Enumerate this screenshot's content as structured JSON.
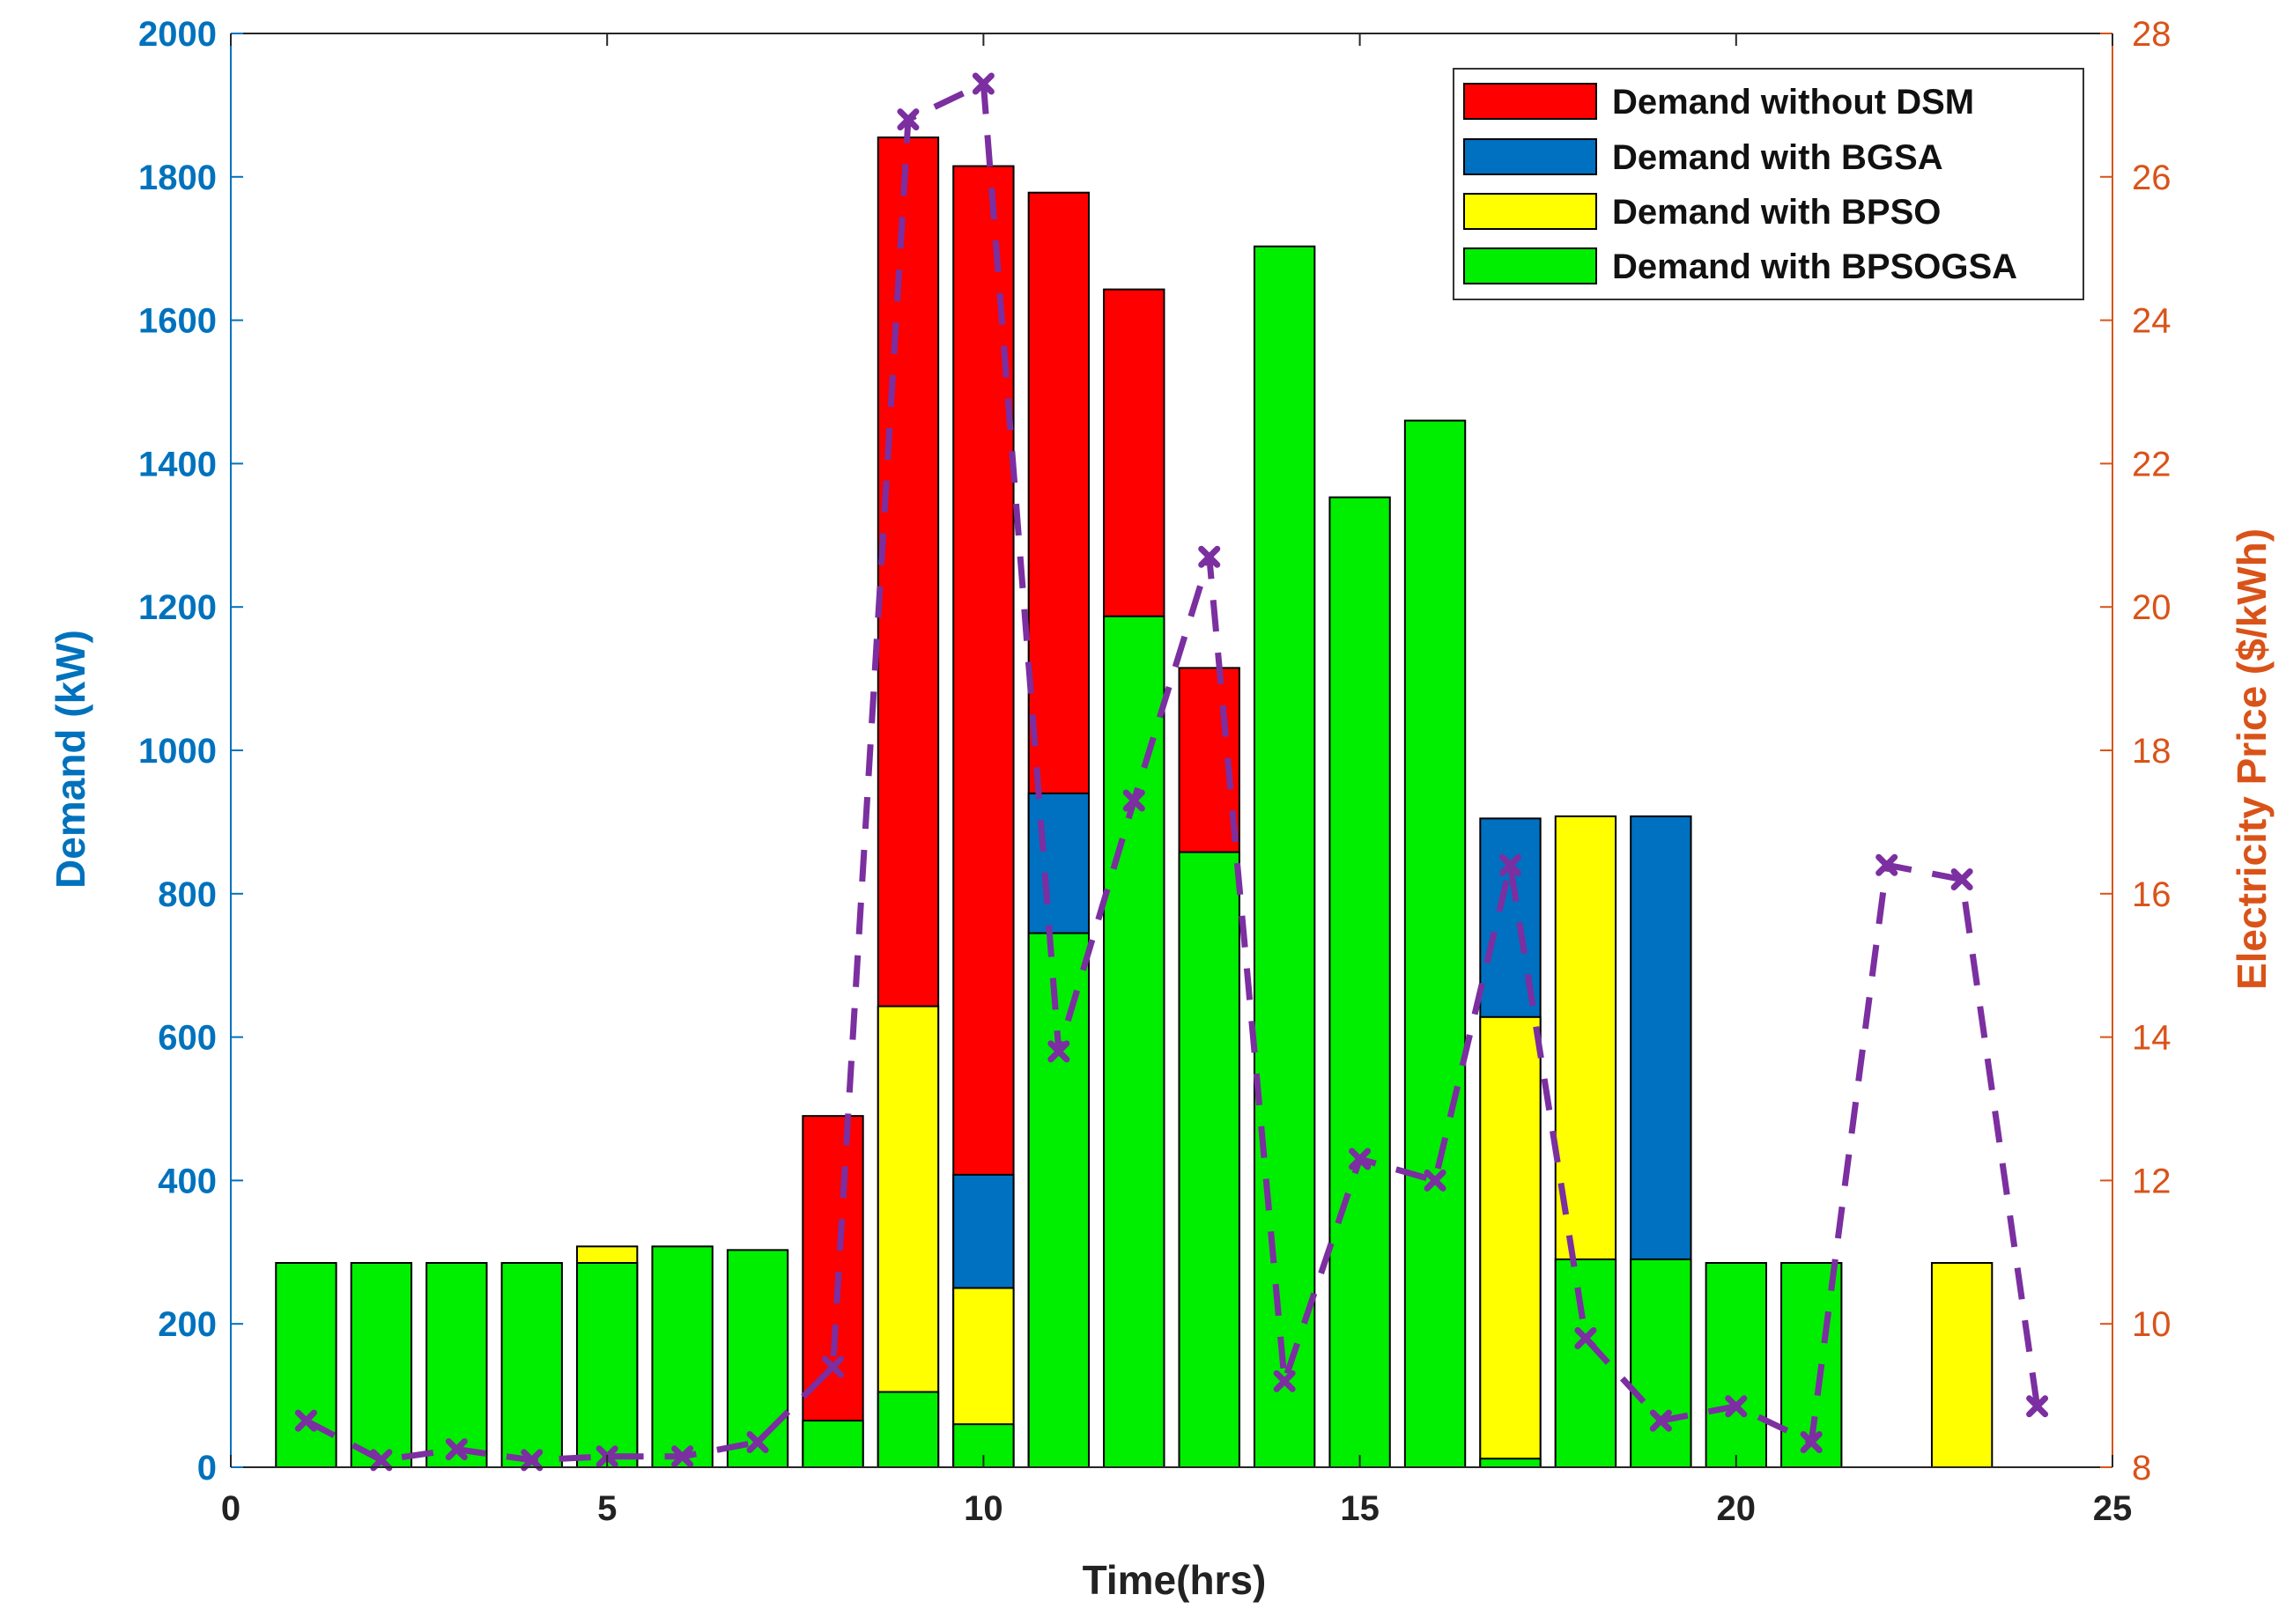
{
  "chart_data": {
    "type": "bar",
    "title": "",
    "xlabel": "Time(hrs)",
    "ylabel_left": "Demand (kW)",
    "ylabel_right": "Electricity Price ($/kWh)",
    "xlim": [
      0,
      25
    ],
    "ylim_left": [
      0,
      2000
    ],
    "ylim_right": [
      8,
      28
    ],
    "x_ticks": [
      0,
      5,
      10,
      15,
      20,
      25
    ],
    "y_left_ticks": [
      0,
      200,
      400,
      600,
      800,
      1000,
      1200,
      1400,
      1600,
      1800,
      2000
    ],
    "y_right_ticks": [
      8,
      10,
      12,
      14,
      16,
      18,
      20,
      22,
      24,
      26,
      28
    ],
    "grid": false,
    "legend_position": "top-right",
    "categories": [
      1,
      2,
      3,
      4,
      5,
      6,
      7,
      8,
      9,
      10,
      11,
      12,
      13,
      14,
      15,
      16,
      17,
      18,
      19,
      20,
      21,
      22,
      23,
      24
    ],
    "series": [
      {
        "name": "Demand without DSM",
        "color": "#ff0000",
        "values": [
          0,
          0,
          0,
          0,
          0,
          0,
          0,
          490,
          1855,
          1815,
          1778,
          1643,
          1115,
          0,
          0,
          0,
          0,
          0,
          0,
          0,
          0,
          0,
          0,
          0
        ]
      },
      {
        "name": "Demand with BGSA",
        "color": "#0070c0",
        "values": [
          0,
          0,
          0,
          0,
          0,
          0,
          0,
          0,
          0,
          408,
          940,
          0,
          0,
          0,
          0,
          0,
          905,
          0,
          908,
          0,
          0,
          0,
          0,
          0
        ]
      },
      {
        "name": "Demand with BPSO",
        "color": "#ffff00",
        "values": [
          0,
          0,
          0,
          0,
          308,
          0,
          0,
          0,
          643,
          250,
          0,
          0,
          0,
          0,
          0,
          0,
          628,
          908,
          0,
          0,
          0,
          0,
          285,
          0
        ]
      },
      {
        "name": "Demand with BPSOGSA",
        "color": "#00ee00",
        "values": [
          285,
          285,
          285,
          285,
          285,
          308,
          303,
          65,
          105,
          60,
          745,
          1187,
          858,
          1703,
          1353,
          1460,
          12,
          290,
          290,
          285,
          285,
          0,
          0,
          0
        ]
      }
    ],
    "price_line": {
      "name": "Electricity Price",
      "color": "#7b2fa0",
      "axis": "right",
      "x": [
        1,
        2,
        3,
        4,
        5,
        6,
        7,
        8,
        9,
        10,
        11,
        12,
        13,
        14,
        15,
        16,
        17,
        18,
        19,
        20,
        21,
        22,
        23,
        24
      ],
      "values": [
        8.65,
        8.1,
        8.25,
        8.1,
        8.15,
        8.15,
        8.35,
        9.4,
        26.8,
        27.3,
        13.8,
        17.3,
        20.7,
        9.2,
        12.3,
        12.0,
        16.4,
        9.8,
        8.65,
        8.85,
        8.35,
        16.4,
        16.2,
        8.85
      ]
    },
    "colors": {
      "left_axis": "#0072bd",
      "right_axis": "#d95319"
    }
  }
}
